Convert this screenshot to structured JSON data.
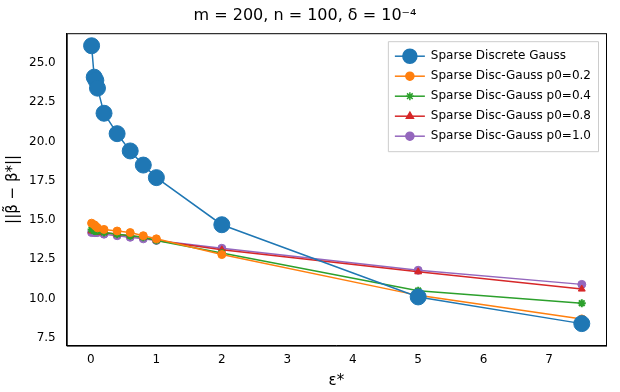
{
  "chart_data": {
    "type": "line",
    "title": "m = 200, n = 100, δ = 10⁻⁴",
    "x_label": "ε*",
    "y_label": "||β̃ − β*||",
    "x": [
      0.01,
      0.05,
      0.075,
      0.1,
      0.2,
      0.4,
      0.6,
      0.8,
      1.0,
      2.0,
      5.0,
      7.5
    ],
    "series": [
      {
        "name": "Sparse Discrete Gauss",
        "color": "#1f77b4",
        "marker": "circle",
        "values": [
          26.1,
          24.1,
          23.9,
          23.4,
          21.8,
          20.5,
          19.4,
          18.5,
          17.7,
          14.7,
          10.1,
          8.4
        ]
      },
      {
        "name": "Sparse Disc-Gauss p0=0.2",
        "color": "#ff7f0e",
        "marker": "circle",
        "values": [
          14.8,
          14.7,
          14.6,
          14.5,
          14.4,
          14.3,
          14.2,
          14.0,
          13.8,
          12.8,
          10.2,
          8.7
        ]
      },
      {
        "name": "Sparse Disc-Gauss p0=0.4",
        "color": "#2ca02c",
        "marker": "star",
        "values": [
          14.4,
          14.3,
          14.3,
          14.3,
          14.2,
          14.1,
          14.0,
          13.9,
          13.7,
          12.9,
          10.5,
          9.7
        ]
      },
      {
        "name": "Sparse Disc-Gauss p0=0.8",
        "color": "#d62728",
        "marker": "triangle",
        "values": [
          14.3,
          14.3,
          14.3,
          14.2,
          14.2,
          14.1,
          14.0,
          13.9,
          13.7,
          13.1,
          11.7,
          10.6
        ]
      },
      {
        "name": "Sparse Disc-Gauss p0=1.0",
        "color": "#9467bd",
        "marker": "circle",
        "values": [
          14.2,
          14.2,
          14.2,
          14.2,
          14.1,
          14.0,
          13.9,
          13.8,
          13.7,
          13.2,
          11.8,
          10.9
        ]
      }
    ],
    "xlim": [
      -0.37,
      7.87
    ],
    "xticks": [
      0,
      1,
      2,
      3,
      4,
      5,
      6,
      7
    ],
    "ylim": [
      7.0,
      26.9
    ],
    "yticks": [
      {
        "value": 7.5,
        "label": "7.5"
      },
      {
        "value": 10,
        "label": "10.0"
      },
      {
        "value": 12.5,
        "label": "12.5"
      },
      {
        "value": 15,
        "label": "15.0"
      },
      {
        "value": 17.5,
        "label": "17.5"
      },
      {
        "value": 20,
        "label": "20.0"
      },
      {
        "value": 22.5,
        "label": "22.5"
      },
      {
        "value": 25,
        "label": "25.0"
      }
    ],
    "legend": "upper right",
    "grid": false
  }
}
